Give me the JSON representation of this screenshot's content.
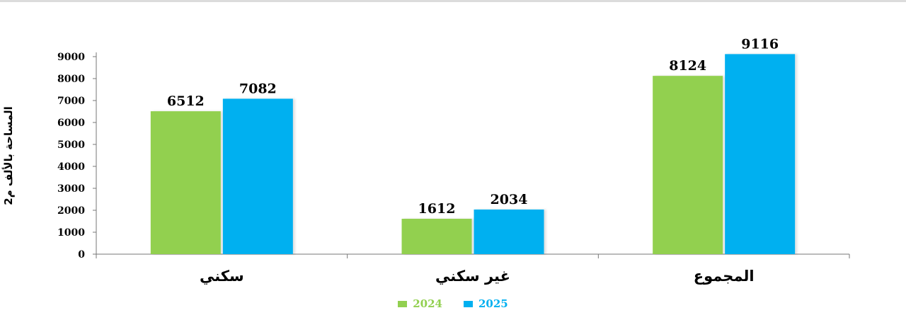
{
  "chart_data": {
    "type": "bar",
    "categories": [
      "سكني",
      "غير سكني",
      "المجموع"
    ],
    "series": [
      {
        "name": "2024",
        "values": [
          6512,
          1612,
          8124
        ],
        "color": "#92d050"
      },
      {
        "name": "2025",
        "values": [
          7082,
          2034,
          9116
        ],
        "color": "#00b0f0"
      }
    ],
    "ylabel": "المساحة بالألف م2",
    "ylim": [
      0,
      9000
    ],
    "yticks": [
      0,
      1000,
      2000,
      3000,
      4000,
      5000,
      6000,
      7000,
      8000,
      9000
    ],
    "legend_position": "bottom",
    "grid": false
  }
}
